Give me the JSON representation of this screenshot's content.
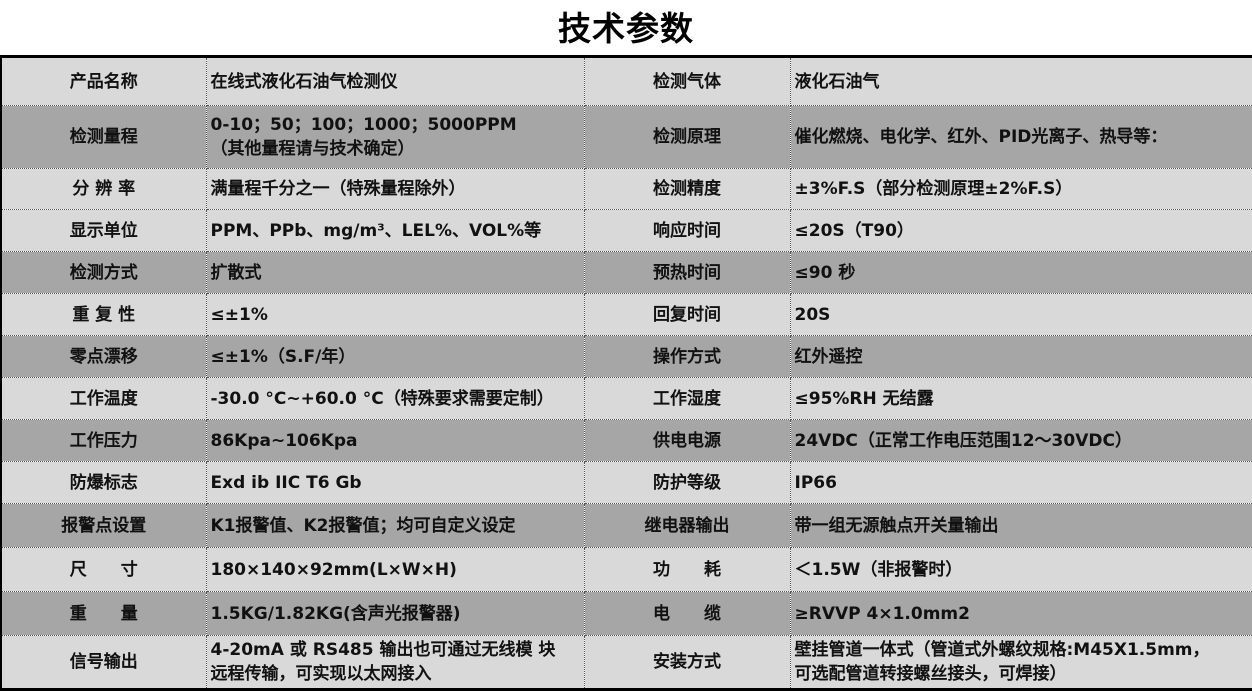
{
  "title": "技术参数",
  "colors": {
    "row_light": "#d9d9d9",
    "row_dark": "#a6a6a6"
  },
  "rows": [
    {
      "shade": "light",
      "k1": "产品名称",
      "v1": "在线式液化石油气检测仪",
      "k2": "检测气体",
      "v2": "液化石油气"
    },
    {
      "shade": "dark",
      "k1": "检测量程",
      "v1": "0-10；50；100；1000；5000PPM\n（其他量程请与技术确定）",
      "k2": "检测原理",
      "v2": "催化燃烧、电化学、红外、PID光离子、热导等："
    },
    {
      "shade": "light",
      "k1": "分 辨 率",
      "v1": "满量程千分之一（特殊量程除外）",
      "k2": "检测精度",
      "v2": "±3%F.S（部分检测原理±2%F.S）"
    },
    {
      "shade": "light",
      "k1": "显示单位",
      "v1": "PPM、PPb、mg/m³、LEL%、VOL%等",
      "k2": "响应时间",
      "v2": "≤20S（T90）"
    },
    {
      "shade": "dark",
      "k1": "检测方式",
      "v1": "扩散式",
      "k2": "预热时间",
      "v2": "≤90 秒"
    },
    {
      "shade": "light",
      "k1": "重 复 性",
      "v1": "≤±1%",
      "k2": "回复时间",
      "v2": "20S"
    },
    {
      "shade": "dark",
      "k1": "零点漂移",
      "v1": "≤±1%（S.F/年）",
      "k2": "操作方式",
      "v2": "红外遥控"
    },
    {
      "shade": "light",
      "k1": "工作温度",
      "v1": "-30.0 °C~+60.0 °C（特殊要求需要定制）",
      "k2": "工作湿度",
      "v2": "≤95%RH 无结露"
    },
    {
      "shade": "dark",
      "k1": "工作压力",
      "v1": "86Kpa~106Kpa",
      "k2": "供电电源",
      "v2": "24VDC（正常工作电压范围12～30VDC）"
    },
    {
      "shade": "light",
      "k1": "防爆标志",
      "v1": "Exd ib IIC T6 Gb",
      "k2": "防护等级",
      "v2": "IP66"
    },
    {
      "shade": "dark",
      "k1": "报警点设置",
      "v1": "K1报警值、K2报警值；均可自定义设定",
      "k2": "继电器输出",
      "v2": "带一组无源触点开关量输出"
    },
    {
      "shade": "light",
      "k1": "尺　　寸",
      "v1": "180×140×92mm(L×W×H)",
      "k2": "功　　耗",
      "v2": "＜1.5W（非报警时）"
    },
    {
      "shade": "dark",
      "k1": "重　　量",
      "v1": "1.5KG/1.82KG(含声光报警器)",
      "k2": "电　　缆",
      "v2": "≥RVVP 4×1.0mm2"
    },
    {
      "shade": "light",
      "k1": "信号输出",
      "v1": "4-20mA 或 RS485 输出也可通过无线模 块\n远程传输，可实现以太网接入",
      "k2": "安装方式",
      "v2": "壁挂管道一体式（管道式外螺纹规格:M45X1.5mm，\n可选配管道转接螺丝接头，可焊接）"
    }
  ]
}
